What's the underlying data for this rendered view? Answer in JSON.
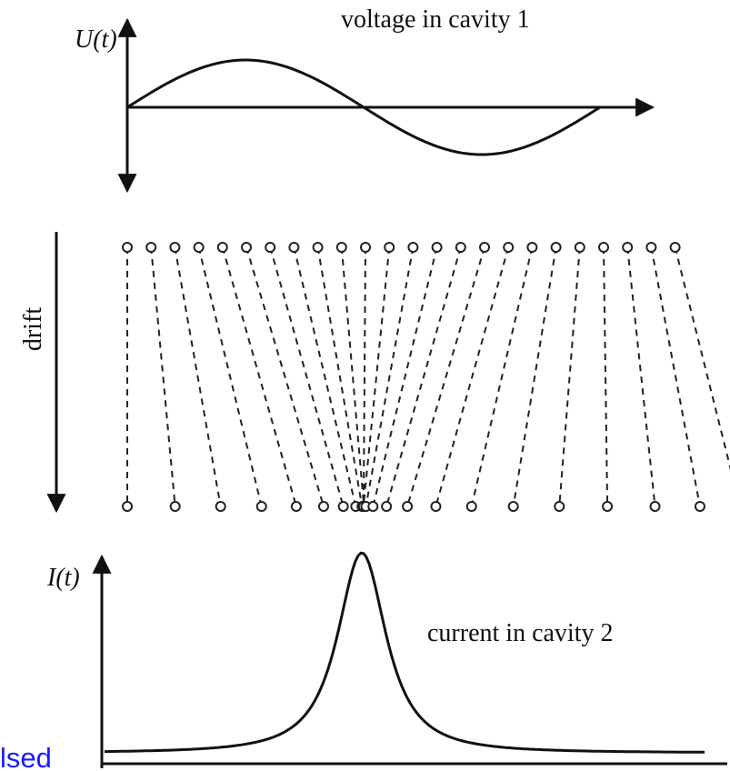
{
  "top_panel": {
    "axis_label": "U(t)",
    "title": "voltage in cavity 1"
  },
  "middle_panel": {
    "axis_label": "drift"
  },
  "bottom_panel": {
    "axis_label": "I(t)",
    "title": "current in cavity 2"
  },
  "overlay_text": "lsed"
}
